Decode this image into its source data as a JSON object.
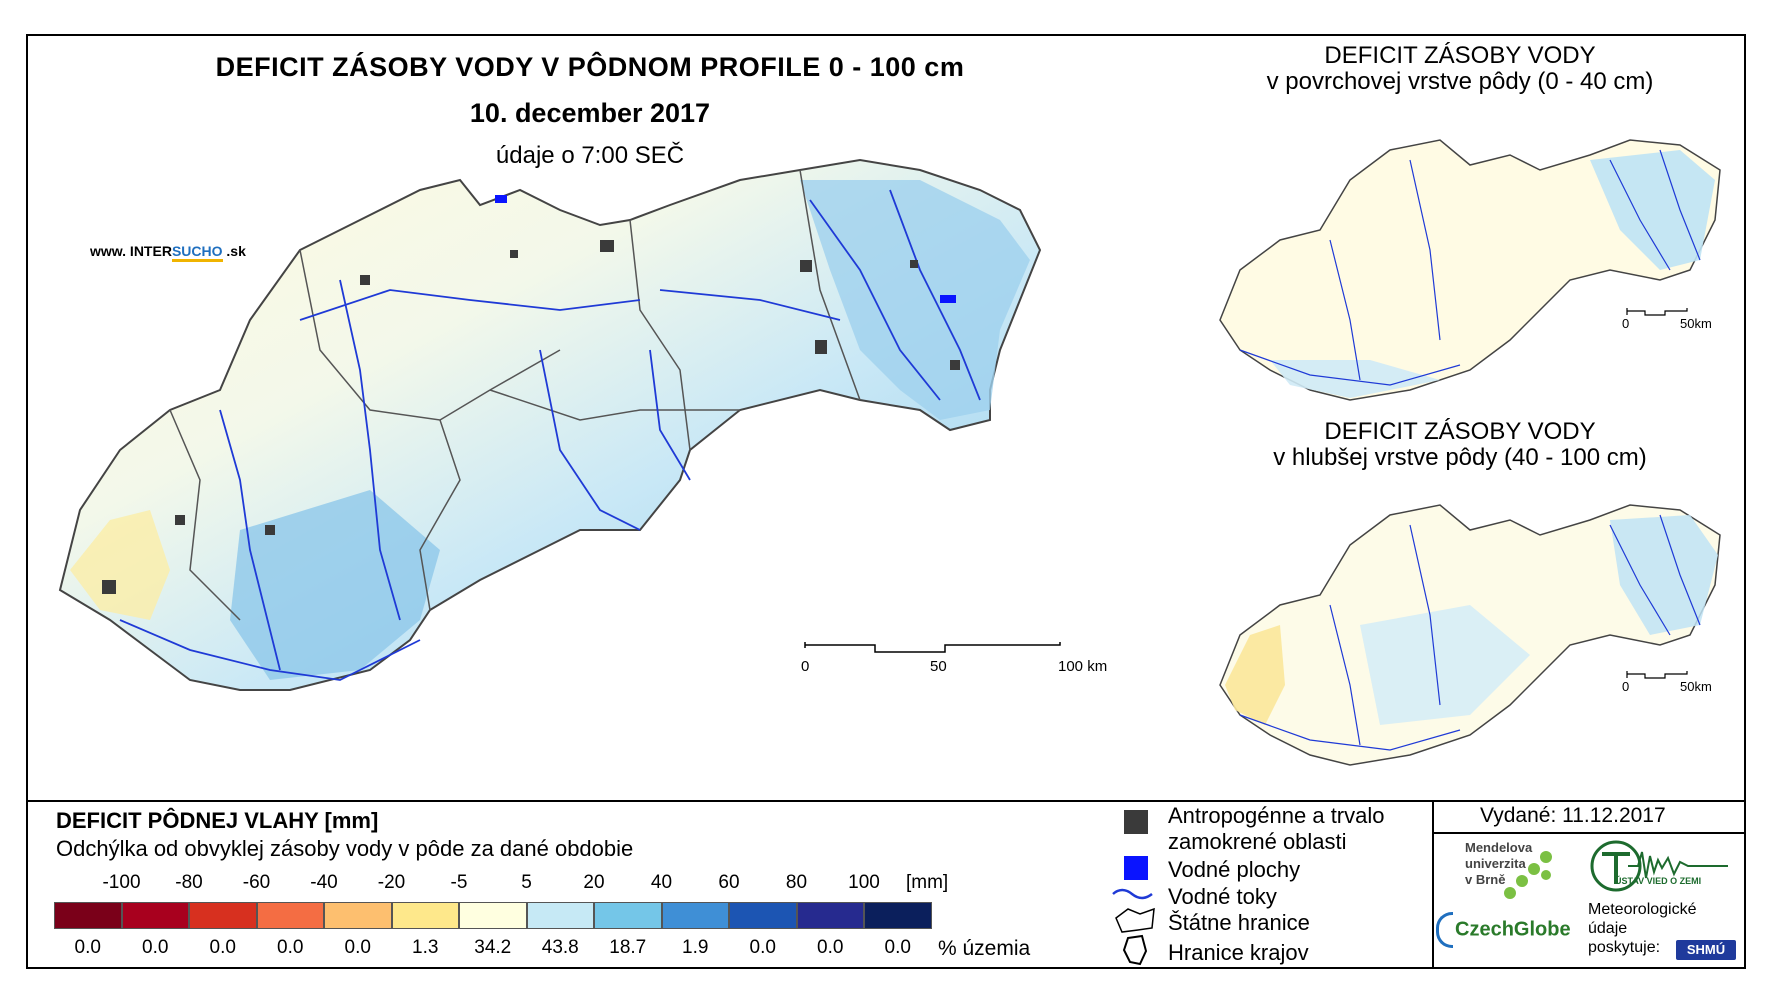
{
  "map": {
    "title": "DEFICIT ZÁSOBY VODY V PÔDNOM PROFILE 0 - 100 cm",
    "date": "10. december 2017",
    "time_note": "údaje o 7:00 SEČ",
    "website": "www. INTERSUCHO .sk",
    "website_parts": {
      "prefix": "www. INTER",
      "accent": "SUCHO",
      "suffix": " .sk"
    },
    "scale_bar": {
      "labels": [
        "0",
        "50",
        "100 km"
      ]
    }
  },
  "insets": [
    {
      "title_line1": "DEFICIT ZÁSOBY VODY",
      "title_line2": "v povrchovej vrstve pôdy (0 - 40 cm)",
      "scale_labels": [
        "0",
        "50km"
      ]
    },
    {
      "title_line1": "DEFICIT ZÁSOBY VODY",
      "title_line2": "v hlubšej vrstve pôdy (40 - 100 cm)",
      "scale_labels": [
        "0",
        "50km"
      ]
    }
  ],
  "legend": {
    "heading": "DEFICIT PÔDNEJ VLAHY [mm]",
    "subheading": "Odchýlka od obvyklej zásoby vody v pôde za dané obdobie",
    "class_breaks": [
      "-100",
      "-80",
      "-60",
      "-40",
      "-20",
      "-5",
      "5",
      "20",
      "40",
      "60",
      "80",
      "100"
    ],
    "unit": "[mm]",
    "colors": [
      "#7a0019",
      "#a8001e",
      "#d7301f",
      "#f46d43",
      "#fdbf6f",
      "#fee88b",
      "#ffffe0",
      "#c6e9f5",
      "#74c6e8",
      "#3f8fd6",
      "#1c55b3",
      "#262a8f",
      "#0b1f5c"
    ],
    "percentages": [
      "0.0",
      "0.0",
      "0.0",
      "0.0",
      "0.0",
      "1.3",
      "34.2",
      "43.8",
      "18.7",
      "1.9",
      "0.0",
      "0.0",
      "0.0"
    ],
    "percent_unit": "% územia"
  },
  "symbols": {
    "anthropogenic": "Antropogénne a trvalo",
    "anthropogenic_2": "zamokrené oblasti",
    "water_bodies": "Vodné plochy",
    "rivers": "Vodné toky",
    "state_border": "Štátne hranice",
    "regions": "Hranice krajov"
  },
  "issued": "Vydané: 11.12.2017",
  "logos": {
    "mendel": [
      "Mendelova",
      "univerzita",
      "v Brně"
    ],
    "czechglobe": "CzechGlobe",
    "ustav": "ÚSTAV VIED O ZEMI",
    "meteo": [
      "Meteorologické",
      "údaje",
      "poskytuje:"
    ],
    "shmu": "SHMÚ"
  }
}
